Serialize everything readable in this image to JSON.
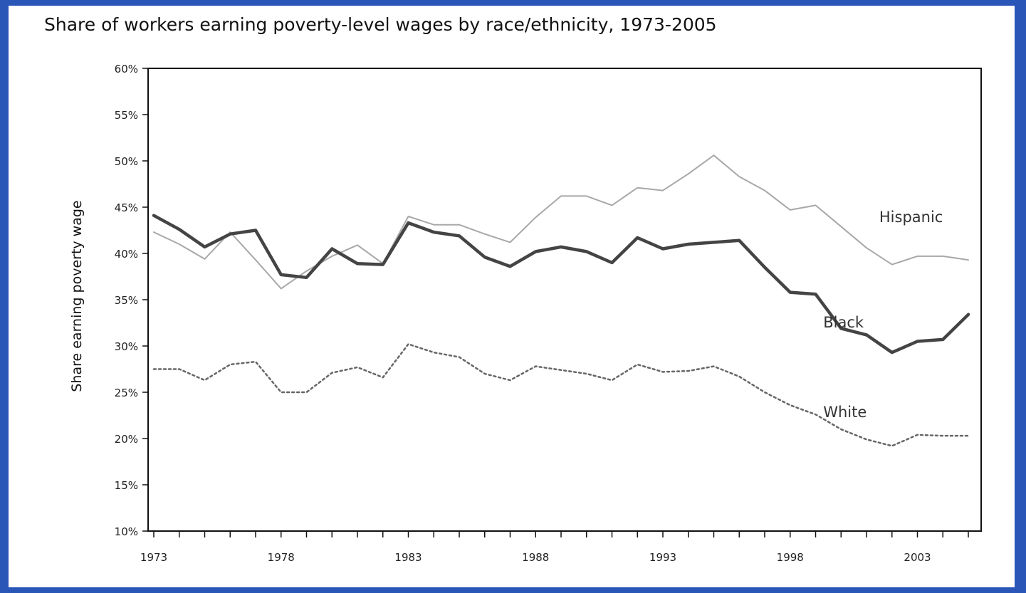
{
  "chart_data": {
    "type": "line",
    "title": "Share of workers earning poverty-level wages by race/ethnicity, 1973-2005",
    "ylabel": "Share earning poverty wage",
    "xlabel": "",
    "xlim": [
      1973,
      2005
    ],
    "ylim": [
      10,
      60
    ],
    "x_ticks": [
      1973,
      1978,
      1983,
      1988,
      1993,
      1998,
      2003
    ],
    "x_tick_labels": [
      "1973",
      "1978",
      "1983",
      "1988",
      "1993",
      "1998",
      "2003"
    ],
    "y_ticks": [
      10,
      15,
      20,
      25,
      30,
      35,
      40,
      45,
      50,
      55,
      60
    ],
    "y_tick_labels": [
      "10%",
      "15%",
      "20%",
      "25%",
      "30%",
      "35%",
      "40%",
      "45%",
      "50%",
      "55%",
      "60%"
    ],
    "grid": false,
    "legend": "inline-right",
    "x": [
      1973,
      1974,
      1975,
      1976,
      1977,
      1978,
      1979,
      1980,
      1981,
      1982,
      1983,
      1984,
      1985,
      1986,
      1987,
      1988,
      1989,
      1990,
      1991,
      1992,
      1993,
      1994,
      1995,
      1996,
      1997,
      1998,
      1999,
      2000,
      2001,
      2002,
      2003,
      2004,
      2005
    ],
    "series": [
      {
        "name": "Hispanic",
        "color": "#a8a8a8",
        "style": "solid",
        "values": [
          42.3,
          41.0,
          39.4,
          42.3,
          39.3,
          36.2,
          38.1,
          39.7,
          40.9,
          38.9,
          44.0,
          43.1,
          43.1,
          42.1,
          41.2,
          43.9,
          46.2,
          46.2,
          45.2,
          47.1,
          46.8,
          48.6,
          50.6,
          48.3,
          46.8,
          44.7,
          45.2,
          42.9,
          40.6,
          38.8,
          39.7,
          39.7,
          39.3
        ],
        "label_at": {
          "x": 2001.5,
          "y": 43.4
        }
      },
      {
        "name": "Black",
        "color": "#444444",
        "style": "solid-thick",
        "values": [
          44.1,
          42.6,
          40.7,
          42.1,
          42.5,
          37.7,
          37.4,
          40.5,
          38.9,
          38.8,
          43.3,
          42.3,
          41.9,
          39.6,
          38.6,
          40.2,
          40.7,
          40.2,
          39.0,
          41.7,
          40.5,
          41.0,
          41.2,
          41.4,
          38.5,
          35.8,
          35.6,
          31.9,
          31.2,
          29.3,
          30.5,
          30.7,
          33.4
        ],
        "label_at": {
          "x": 1999.3,
          "y": 32.0
        }
      },
      {
        "name": "White",
        "color": "#666666",
        "style": "dotted",
        "values": [
          27.5,
          27.5,
          26.3,
          28.0,
          28.3,
          25.0,
          25.0,
          27.1,
          27.7,
          26.6,
          30.2,
          29.3,
          28.8,
          27.0,
          26.3,
          27.8,
          27.4,
          27.0,
          26.3,
          28.0,
          27.2,
          27.3,
          27.8,
          26.7,
          25.0,
          23.6,
          22.6,
          21.0,
          19.9,
          19.2,
          20.4,
          20.3,
          20.3
        ],
        "label_at": {
          "x": 1999.3,
          "y": 22.3
        }
      }
    ]
  }
}
